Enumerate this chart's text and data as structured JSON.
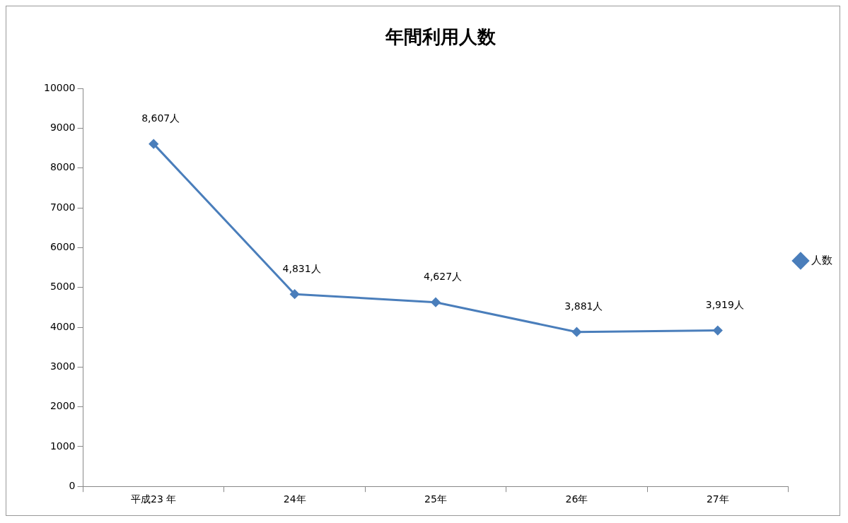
{
  "chart_data": {
    "type": "line",
    "title": "年間利用人数",
    "categories": [
      "平成23 年",
      "24年",
      "25年",
      "26年",
      "27年"
    ],
    "series": [
      {
        "name": "人数",
        "color": "#4a7ebb",
        "values": [
          8607,
          4831,
          4627,
          3881,
          3919
        ],
        "value_labels": [
          "8,607人",
          "4,831人",
          "4,627人",
          "3,881人",
          "3,919人"
        ]
      }
    ],
    "ylim": [
      0,
      10000
    ],
    "yticks": [
      0,
      1000,
      2000,
      3000,
      4000,
      5000,
      6000,
      7000,
      8000,
      9000,
      10000
    ],
    "grid": false,
    "legend": "right",
    "marker": "diamond",
    "line_style": "solid"
  }
}
